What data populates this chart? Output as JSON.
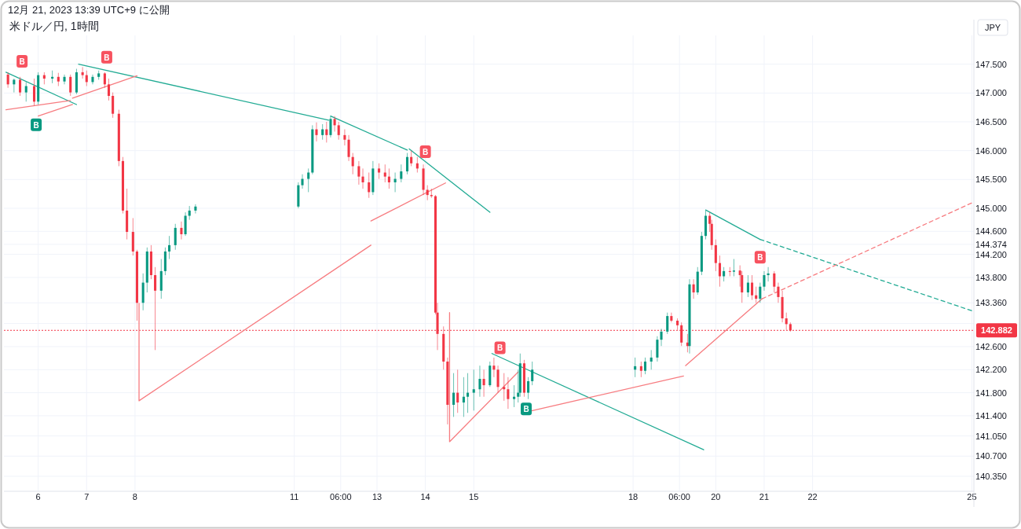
{
  "chart_data": {
    "type": "candlestick",
    "subtitle": "12月 21, 2023 13:39 UTC+9 に公開",
    "title": "米ドル／円, 1時間",
    "ylabel": "JPY",
    "x": [
      "2023-12-05T09:00",
      "2023-12-05T12:00",
      "2023-12-05T15:00",
      "2023-12-05T18:00",
      "2023-12-05T22:00",
      "2023-12-06T00:00",
      "2023-12-06T03:00",
      "2023-12-06T07:00",
      "2023-12-06T10:00",
      "2023-12-06T13:00",
      "2023-12-06T16:00",
      "2023-12-06T19:00",
      "2023-12-06T22:00",
      "2023-12-07T00:00",
      "2023-12-07T03:00",
      "2023-12-07T06:00",
      "2023-12-07T09:00",
      "2023-12-07T11:00",
      "2023-12-07T13:00",
      "2023-12-07T16:00",
      "2023-12-07T18:00",
      "2023-12-07T20:00",
      "2023-12-07T23:00",
      "2023-12-08T01:00",
      "2023-12-08T04:00",
      "2023-12-08T06:00",
      "2023-12-08T08:00",
      "2023-12-08T10:00",
      "2023-12-08T13:00",
      "2023-12-08T15:00",
      "2023-12-08T17:00",
      "2023-12-08T20:00",
      "2023-12-08T23:00",
      "2023-12-09T01:00",
      "2023-12-09T03:00",
      "2023-12-09T06:00",
      "2023-12-11T09:00",
      "2023-12-11T11:00",
      "2023-12-11T14:00",
      "2023-12-11T16:00",
      "2023-12-11T18:00",
      "2023-12-11T21:00",
      "2023-12-11T23:00",
      "2023-12-12T01:00",
      "2023-12-12T03:00",
      "2023-12-12T05:00",
      "2023-12-12T08:00",
      "2023-12-12T10:00",
      "2023-12-12T12:00",
      "2023-12-12T15:00",
      "2023-12-12T17:00",
      "2023-12-12T20:00",
      "2023-12-12T22:00",
      "2023-12-13T01:00",
      "2023-12-13T04:00",
      "2023-12-13T06:00",
      "2023-12-13T09:00",
      "2023-12-13T12:00",
      "2023-12-13T15:00",
      "2023-12-13T17:00",
      "2023-12-13T20:00",
      "2023-12-13T23:00",
      "2023-12-14T01:00",
      "2023-12-14T03:00",
      "2023-12-14T05:00",
      "2023-12-14T06:00",
      "2023-12-14T09:00",
      "2023-12-14T11:00",
      "2023-12-14T14:00",
      "2023-12-14T16:00",
      "2023-12-14T19:00",
      "2023-12-14T21:00",
      "2023-12-15T00:00",
      "2023-12-15T03:00",
      "2023-12-15T05:00",
      "2023-12-15T08:00",
      "2023-12-15T10:00",
      "2023-12-15T12:00",
      "2023-12-15T15:00",
      "2023-12-15T17:00",
      "2023-12-15T20:00",
      "2023-12-15T22:00",
      "2023-12-15T23:00",
      "2023-12-16T01:00",
      "2023-12-16T03:00",
      "2023-12-16T05:00",
      "2023-12-18T08:00",
      "2023-12-18T11:00",
      "2023-12-18T13:00",
      "2023-12-18T16:00",
      "2023-12-18T19:00",
      "2023-12-18T21:00",
      "2023-12-19T00:00",
      "2023-12-19T02:00",
      "2023-12-19T05:00",
      "2023-12-19T07:00",
      "2023-12-19T10:00",
      "2023-12-19T11:00",
      "2023-12-19T13:00",
      "2023-12-19T15:00",
      "2023-12-19T17:00",
      "2023-12-19T19:00",
      "2023-12-19T21:00",
      "2023-12-19T22:00",
      "2023-12-20T00:00",
      "2023-12-20T02:00",
      "2023-12-20T04:00",
      "2023-12-20T07:00",
      "2023-12-20T09:00",
      "2023-12-20T12:00",
      "2023-12-20T13:00",
      "2023-12-20T16:00",
      "2023-12-20T18:00",
      "2023-12-20T20:00",
      "2023-12-20T22:00",
      "2023-12-21T00:00",
      "2023-12-21T02:00",
      "2023-12-21T05:00",
      "2023-12-21T07:00",
      "2023-12-21T09:00",
      "2023-12-21T11:00",
      "2023-12-21T13:00"
    ],
    "ohlc": [
      [
        147.32,
        147.36,
        147.09,
        147.15
      ],
      [
        147.15,
        147.25,
        147.01,
        147.23
      ],
      [
        147.23,
        147.28,
        146.95,
        147.01
      ],
      [
        147.01,
        147.19,
        146.85,
        147.12
      ],
      [
        147.12,
        147.25,
        146.78,
        146.85
      ],
      [
        146.85,
        147.36,
        146.8,
        147.31
      ],
      [
        147.31,
        147.36,
        147.15,
        147.25
      ],
      [
        147.25,
        147.39,
        147.17,
        147.28
      ],
      [
        147.28,
        147.35,
        147.12,
        147.2
      ],
      [
        147.2,
        147.32,
        147.15,
        147.28
      ],
      [
        147.28,
        147.32,
        146.95,
        147.01
      ],
      [
        147.01,
        147.42,
        146.98,
        147.36
      ],
      [
        147.36,
        147.45,
        147.25,
        147.31
      ],
      [
        147.31,
        147.39,
        147.12,
        147.19
      ],
      [
        147.19,
        147.32,
        147.15,
        147.28
      ],
      [
        147.28,
        147.39,
        147.23,
        147.34
      ],
      [
        147.34,
        147.36,
        147.09,
        147.15
      ],
      [
        147.15,
        147.25,
        146.87,
        146.95
      ],
      [
        146.95,
        147.01,
        146.57,
        146.64
      ],
      [
        146.64,
        146.71,
        145.73,
        145.82
      ],
      [
        145.82,
        145.89,
        144.91,
        144.96
      ],
      [
        144.96,
        145.34,
        144.46,
        144.59
      ],
      [
        144.59,
        144.83,
        144.18,
        144.25
      ],
      [
        144.25,
        144.28,
        143.05,
        143.36
      ],
      [
        143.36,
        143.87,
        143.23,
        143.71
      ],
      [
        143.71,
        144.32,
        143.54,
        144.25
      ],
      [
        144.25,
        144.36,
        143.77,
        143.84
      ],
      [
        143.84,
        143.98,
        142.54,
        143.57
      ],
      [
        143.57,
        144.12,
        143.43,
        143.91
      ],
      [
        143.91,
        144.32,
        143.84,
        144.25
      ],
      [
        144.25,
        144.52,
        144.12,
        144.36
      ],
      [
        144.36,
        144.73,
        144.28,
        144.66
      ],
      [
        144.66,
        144.77,
        144.46,
        144.55
      ],
      [
        144.55,
        144.93,
        144.52,
        144.87
      ],
      [
        144.87,
        145.04,
        144.8,
        144.96
      ],
      [
        144.96,
        145.07,
        144.91,
        145.03
      ],
      [
        145.03,
        145.45,
        145.0,
        145.4
      ],
      [
        145.4,
        145.59,
        145.34,
        145.51
      ],
      [
        145.51,
        145.69,
        145.28,
        145.62
      ],
      [
        145.62,
        146.44,
        145.59,
        146.37
      ],
      [
        146.37,
        146.49,
        146.16,
        146.27
      ],
      [
        146.27,
        146.46,
        146.19,
        146.37
      ],
      [
        146.37,
        146.5,
        146.14,
        146.27
      ],
      [
        146.27,
        146.6,
        146.23,
        146.55
      ],
      [
        146.55,
        146.6,
        146.33,
        146.44
      ],
      [
        146.44,
        146.5,
        146.19,
        146.27
      ],
      [
        146.27,
        146.37,
        146.09,
        146.19
      ],
      [
        146.19,
        146.27,
        145.82,
        145.89
      ],
      [
        145.89,
        145.96,
        145.59,
        145.73
      ],
      [
        145.73,
        145.82,
        145.41,
        145.55
      ],
      [
        145.55,
        145.69,
        145.34,
        145.45
      ],
      [
        145.45,
        145.62,
        145.18,
        145.28
      ],
      [
        145.28,
        145.82,
        145.23,
        145.69
      ],
      [
        145.69,
        145.78,
        145.51,
        145.62
      ],
      [
        145.62,
        145.76,
        145.45,
        145.55
      ],
      [
        145.55,
        145.69,
        145.34,
        145.45
      ],
      [
        145.45,
        145.62,
        145.28,
        145.51
      ],
      [
        145.51,
        145.76,
        145.45,
        145.64
      ],
      [
        145.64,
        145.96,
        145.59,
        145.89
      ],
      [
        145.89,
        146.0,
        145.73,
        145.78
      ],
      [
        145.78,
        145.89,
        145.62,
        145.69
      ],
      [
        145.69,
        145.76,
        145.23,
        145.32
      ],
      [
        145.32,
        145.4,
        145.14,
        145.23
      ],
      [
        145.23,
        145.34,
        145.18,
        145.21
      ],
      [
        145.21,
        145.23,
        143.16,
        143.19
      ],
      [
        143.19,
        143.36,
        142.54,
        142.82
      ],
      [
        142.82,
        142.95,
        142.2,
        142.34
      ],
      [
        142.34,
        142.41,
        141.25,
        141.59
      ],
      [
        141.59,
        142.14,
        141.38,
        141.8
      ],
      [
        141.8,
        142.2,
        141.45,
        141.63
      ],
      [
        141.63,
        142.07,
        141.38,
        141.73
      ],
      [
        141.73,
        142.14,
        141.45,
        141.8
      ],
      [
        141.8,
        142.2,
        141.49,
        141.86
      ],
      [
        141.86,
        142.27,
        141.73,
        142.04
      ],
      [
        142.04,
        142.2,
        141.73,
        141.93
      ],
      [
        141.93,
        142.34,
        141.9,
        142.27
      ],
      [
        142.27,
        142.41,
        142.07,
        142.2
      ],
      [
        142.2,
        142.27,
        141.8,
        141.9
      ],
      [
        141.9,
        142.14,
        141.66,
        141.86
      ],
      [
        141.86,
        142.07,
        141.52,
        141.69
      ],
      [
        141.69,
        141.93,
        141.55,
        141.73
      ],
      [
        141.73,
        142.2,
        141.63,
        141.8
      ],
      [
        141.8,
        142.48,
        141.73,
        142.31
      ],
      [
        142.31,
        142.37,
        141.73,
        141.8
      ],
      [
        141.8,
        142.07,
        141.69,
        142.0
      ],
      [
        142.0,
        142.34,
        141.93,
        142.2
      ],
      [
        142.2,
        142.41,
        142.07,
        142.26
      ],
      [
        142.26,
        142.34,
        142.07,
        142.18
      ],
      [
        142.18,
        142.41,
        142.12,
        142.34
      ],
      [
        142.34,
        142.54,
        142.2,
        142.41
      ],
      [
        142.41,
        142.78,
        142.34,
        142.72
      ],
      [
        142.72,
        142.91,
        142.61,
        142.86
      ],
      [
        142.86,
        143.19,
        142.82,
        143.13
      ],
      [
        143.13,
        143.19,
        143.02,
        143.05
      ],
      [
        143.05,
        143.09,
        142.89,
        142.97
      ],
      [
        142.97,
        143.02,
        142.61,
        142.67
      ],
      [
        142.67,
        142.82,
        142.5,
        142.61
      ],
      [
        142.61,
        143.77,
        142.48,
        143.68
      ],
      [
        143.68,
        143.77,
        143.43,
        143.54
      ],
      [
        143.54,
        143.98,
        143.5,
        143.9
      ],
      [
        143.9,
        144.59,
        143.84,
        144.52
      ],
      [
        144.52,
        144.96,
        144.46,
        144.87
      ],
      [
        144.87,
        144.93,
        144.59,
        144.73
      ],
      [
        144.73,
        144.8,
        144.28,
        144.36
      ],
      [
        144.36,
        144.46,
        143.91,
        144.05
      ],
      [
        144.05,
        144.18,
        143.64,
        143.82
      ],
      [
        143.82,
        143.98,
        143.73,
        143.91
      ],
      [
        143.91,
        143.98,
        143.82,
        143.9
      ],
      [
        143.9,
        144.12,
        143.82,
        143.92
      ],
      [
        143.92,
        144.01,
        143.64,
        143.84
      ],
      [
        143.84,
        143.91,
        143.36,
        143.54
      ],
      [
        143.54,
        143.84,
        143.46,
        143.71
      ],
      [
        143.71,
        143.84,
        143.41,
        143.49
      ],
      [
        143.49,
        143.64,
        143.36,
        143.43
      ],
      [
        143.43,
        143.71,
        143.36,
        143.64
      ],
      [
        143.64,
        143.91,
        143.57,
        143.84
      ],
      [
        143.84,
        143.98,
        143.73,
        143.87
      ],
      [
        143.87,
        143.91,
        143.54,
        143.64
      ],
      [
        143.64,
        143.71,
        143.36,
        143.46
      ],
      [
        143.46,
        143.57,
        143.02,
        143.09
      ],
      [
        143.09,
        143.19,
        142.89,
        142.99
      ],
      [
        142.99,
        143.02,
        142.86,
        142.88
      ]
    ],
    "colors": [
      "#f23645",
      "#089981",
      "#f23645",
      "#089981",
      "#f23645",
      "#089981",
      "#f23645",
      "#089981",
      "#f23645",
      "#089981",
      "#f23645",
      "#089981",
      "#f23645",
      "#f23645",
      "#089981",
      "#089981",
      "#f23645",
      "#f23645",
      "#f23645",
      "#f23645",
      "#f23645",
      "#f23645",
      "#f23645",
      "#f23645",
      "#089981",
      "#089981",
      "#f23645",
      "#f23645",
      "#089981",
      "#089981",
      "#089981",
      "#089981",
      "#f23645",
      "#089981",
      "#089981",
      "#089981",
      "#089981",
      "#089981",
      "#089981",
      "#089981",
      "#f23645",
      "#089981",
      "#f23645",
      "#089981",
      "#f23645",
      "#f23645",
      "#f23645",
      "#f23645",
      "#f23645",
      "#f23645",
      "#f23645",
      "#f23645",
      "#089981",
      "#f23645",
      "#f23645",
      "#f23645",
      "#089981",
      "#089981",
      "#089981",
      "#f23645",
      "#f23645",
      "#f23645",
      "#f23645",
      "#f23645",
      "#f23645",
      "#f23645",
      "#f23645",
      "#f23645",
      "#089981",
      "#f23645",
      "#089981",
      "#089981",
      "#089981",
      "#089981",
      "#f23645",
      "#089981",
      "#f23645",
      "#f23645",
      "#f23645",
      "#f23645",
      "#089981",
      "#089981",
      "#089981",
      "#f23645",
      "#089981",
      "#089981",
      "#089981",
      "#f23645",
      "#089981",
      "#089981",
      "#089981",
      "#089981",
      "#089981",
      "#f23645",
      "#f23645",
      "#f23645",
      "#f23645",
      "#089981",
      "#f23645",
      "#089981",
      "#089981",
      "#089981",
      "#f23645",
      "#f23645",
      "#f23645",
      "#f23645",
      "#089981",
      "#f23645",
      "#089981",
      "#f23645",
      "#f23645",
      "#089981",
      "#f23645",
      "#f23645",
      "#089981",
      "#089981",
      "#089981",
      "#f23645",
      "#f23645",
      "#f23645",
      "#f23645",
      "#f23645"
    ],
    "series": [
      {
        "type": "line",
        "color": "#22ab94",
        "x": [
          "2023-12-05T08:00",
          "2023-12-06T19:00"
        ],
        "values": [
          147.36,
          146.8
        ]
      },
      {
        "type": "line",
        "color": "#22ab94",
        "x": [
          "2023-12-06T20:00",
          "2023-12-12T00:00"
        ],
        "values": [
          147.5,
          146.53
        ]
      },
      {
        "type": "line",
        "color": "#22ab94",
        "x": [
          "2023-12-12T01:00",
          "2023-12-13T15:00"
        ],
        "values": [
          146.6,
          146.01
        ]
      },
      {
        "type": "line",
        "color": "#22ab94",
        "x": [
          "2023-12-13T16:00",
          "2023-12-15T08:00"
        ],
        "values": [
          146.03,
          144.93
        ]
      },
      {
        "type": "line",
        "color": "#22ab94",
        "x": [
          "2023-12-15T09:00",
          "2023-12-19T18:00"
        ],
        "values": [
          142.48,
          140.81
        ]
      },
      {
        "type": "line",
        "color": "#22ab94",
        "x": [
          "2023-12-19T19:00",
          "2023-12-20T22:00"
        ],
        "values": [
          144.97,
          144.46
        ]
      },
      {
        "type": "line",
        "color": "#22ab94",
        "line_style": "dashed",
        "x": [
          "2023-12-20T22:00",
          "2023-12-25T08:00"
        ],
        "values": [
          144.46,
          143.21
        ]
      },
      {
        "type": "line",
        "color": "#f77c80",
        "x": [
          "2023-12-05T08:00",
          "2023-12-06T16:00"
        ],
        "values": [
          146.71,
          146.87
        ]
      },
      {
        "type": "line",
        "color": "#f77c80",
        "x": [
          "2023-12-06T00:00",
          "2023-12-06T17:00"
        ],
        "values": [
          146.6,
          146.8
        ]
      },
      {
        "type": "line",
        "color": "#f77c80",
        "x": [
          "2023-12-06T17:00",
          "2023-12-08T01:00"
        ],
        "values": [
          146.91,
          147.3
        ]
      },
      {
        "type": "line",
        "color": "#f77c80",
        "x": [
          "2023-12-08T02:00",
          "2023-12-08T02:00",
          "2023-12-12T21:00"
        ],
        "values": [
          143.35,
          141.66,
          144.36
        ]
      },
      {
        "type": "line",
        "color": "#f77c80",
        "x": [
          "2023-12-12T21:00",
          "2023-12-14T10:00"
        ],
        "values": [
          144.78,
          145.44
        ]
      },
      {
        "type": "line",
        "color": "#f77c80",
        "x": [
          "2023-12-14T12:00",
          "2023-12-14T12:00",
          "2023-12-15T22:00"
        ],
        "values": [
          143.19,
          140.95,
          142.16
        ]
      },
      {
        "type": "line",
        "color": "#f77c80",
        "x": [
          "2023-12-16T00:00",
          "2023-12-19T08:00"
        ],
        "values": [
          141.45,
          142.09
        ]
      },
      {
        "type": "line",
        "color": "#f77c80",
        "x": [
          "2023-12-19T09:00",
          "2023-12-20T23:00"
        ],
        "values": [
          142.27,
          143.43
        ]
      },
      {
        "type": "line",
        "color": "#f77c80",
        "line_style": "dashed",
        "x": [
          "2023-12-20T23:00",
          "2023-12-25T08:00"
        ],
        "values": [
          143.43,
          145.11
        ]
      },
      {
        "type": "scatter",
        "marker": "square",
        "color": "#f7525f",
        "x": [
          "2023-12-05T16:00",
          "2023-12-07T10:00",
          "2023-12-14T00:00",
          "2023-12-15T13:00",
          "2023-12-20T22:00"
        ],
        "values": [
          147.55,
          147.62,
          145.98,
          142.58,
          144.15
        ]
      },
      {
        "type": "scatter",
        "marker": "square",
        "color": "#089981",
        "x": [
          "2023-12-05T23:00",
          "2023-12-16T02:00"
        ],
        "values": [
          146.45,
          141.52
        ]
      }
    ],
    "annotations": [
      {
        "text": "B",
        "x": "2023-12-05T16:00",
        "y": 147.55
      },
      {
        "text": "B",
        "x": "2023-12-07T10:00",
        "y": 147.62
      },
      {
        "text": "B",
        "x": "2023-12-14T00:00",
        "y": 145.98
      },
      {
        "text": "B",
        "x": "2023-12-15T13:00",
        "y": 142.58
      },
      {
        "text": "B",
        "x": "2023-12-20T22:00",
        "y": 144.15
      },
      {
        "text": "B",
        "x": "2023-12-05T23:00",
        "y": 146.45
      },
      {
        "text": "B",
        "x": "2023-12-16T02:00",
        "y": 141.52
      }
    ],
    "ref_lines": [
      {
        "axis": "y",
        "value": 142.882,
        "label": "142.882",
        "color": "#f23645",
        "line_style": "dotted"
      }
    ],
    "xlim": [
      "2023-12-05T07:00",
      "2023-12-25T08:00"
    ],
    "xticks": [
      {
        "value": "2023-12-06T00:00",
        "label": "6"
      },
      {
        "value": "2023-12-07T00:00",
        "label": "7"
      },
      {
        "value": "2023-12-08T00:00",
        "label": "8"
      },
      {
        "value": "2023-12-11T07:00",
        "label": "11"
      },
      {
        "value": "2023-12-12T06:00",
        "label": "06:00"
      },
      {
        "value": "2023-12-13T00:00",
        "label": "13"
      },
      {
        "value": "2023-12-14T00:00",
        "label": "14"
      },
      {
        "value": "2023-12-15T00:00",
        "label": "15"
      },
      {
        "value": "2023-12-18T07:00",
        "label": "18"
      },
      {
        "value": "2023-12-19T06:00",
        "label": "06:00"
      },
      {
        "value": "2023-12-20T00:00",
        "label": "20"
      },
      {
        "value": "2023-12-21T00:00",
        "label": "21"
      },
      {
        "value": "2023-12-22T00:00",
        "label": "22"
      },
      {
        "value": "2023-12-25T07:00",
        "label": "25"
      }
    ],
    "ylim": [
      140.09,
      148.0
    ],
    "yticks": [
      {
        "value": 147.5,
        "label": "147.500"
      },
      {
        "value": 147.0,
        "label": "147.000"
      },
      {
        "value": 146.5,
        "label": "146.500"
      },
      {
        "value": 146.0,
        "label": "146.000"
      },
      {
        "value": 145.5,
        "label": "145.500"
      },
      {
        "value": 145.0,
        "label": "145.000"
      },
      {
        "value": 144.6,
        "label": "144.600"
      },
      {
        "value": 144.374,
        "label": "144.374"
      },
      {
        "value": 144.2,
        "label": "144.200"
      },
      {
        "value": 143.8,
        "label": "143.800"
      },
      {
        "value": 143.36,
        "label": "143.360"
      },
      {
        "value": 143.0,
        "label": null
      },
      {
        "value": 142.6,
        "label": "142.600"
      },
      {
        "value": 142.2,
        "label": "142.200"
      },
      {
        "value": 141.8,
        "label": "141.800"
      },
      {
        "value": 141.4,
        "label": "141.400"
      },
      {
        "value": 141.05,
        "label": "141.050"
      },
      {
        "value": 140.7,
        "label": "140.700"
      },
      {
        "value": 140.35,
        "label": "140.350"
      }
    ],
    "grid": true
  }
}
